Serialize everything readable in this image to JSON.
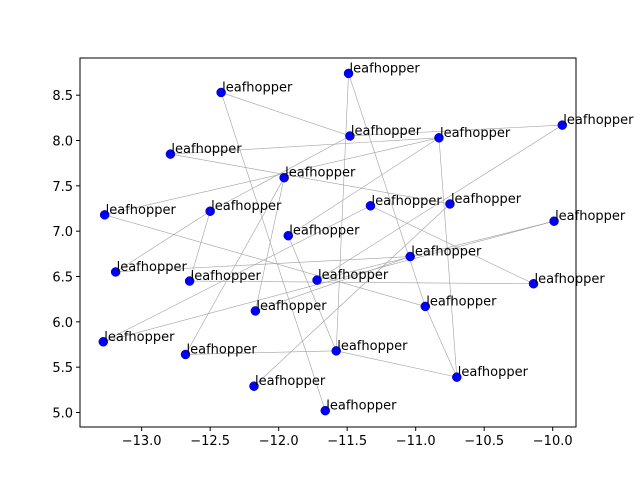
{
  "chart_data": {
    "type": "scatter",
    "title": "",
    "xlabel": "",
    "ylabel": "",
    "xlim": [
      -13.45,
      -9.83
    ],
    "ylim": [
      4.84,
      8.91
    ],
    "xticks": [
      -13.0,
      -12.5,
      -12.0,
      -11.5,
      -11.0,
      -10.5,
      -10.0
    ],
    "xtick_labels": [
      "−13.0",
      "−12.5",
      "−12.0",
      "−11.5",
      "−11.0",
      "−10.5",
      "−10.0"
    ],
    "yticks": [
      5.0,
      5.5,
      6.0,
      6.5,
      7.0,
      7.5,
      8.0,
      8.5
    ],
    "ytick_labels": [
      "5.0",
      "5.5",
      "6.0",
      "6.5",
      "7.0",
      "7.5",
      "8.0",
      "8.5"
    ],
    "grid": false,
    "marker_color": "#0000ff",
    "edge_color": "#a0a0a0",
    "points": [
      {
        "label": "leafhopper",
        "x": -11.49,
        "y": 8.74
      },
      {
        "label": "leafhopper",
        "x": -12.42,
        "y": 8.53
      },
      {
        "label": "leafhopper",
        "x": -11.48,
        "y": 8.05
      },
      {
        "label": "leafhopper",
        "x": -10.83,
        "y": 8.03
      },
      {
        "label": "leafhopper",
        "x": -9.93,
        "y": 8.17
      },
      {
        "label": "leafhopper",
        "x": -12.79,
        "y": 7.85
      },
      {
        "label": "leafhopper",
        "x": -11.96,
        "y": 7.59
      },
      {
        "label": "leafhopper",
        "x": -11.33,
        "y": 7.28
      },
      {
        "label": "leafhopper",
        "x": -10.75,
        "y": 7.3
      },
      {
        "label": "leafhopper",
        "x": -12.5,
        "y": 7.22
      },
      {
        "label": "leafhopper",
        "x": -13.27,
        "y": 7.18
      },
      {
        "label": "leafhopper",
        "x": -9.99,
        "y": 7.11
      },
      {
        "label": "leafhopper",
        "x": -11.93,
        "y": 6.95
      },
      {
        "label": "leafhopper",
        "x": -11.04,
        "y": 6.72
      },
      {
        "label": "leafhopper",
        "x": -13.19,
        "y": 6.55
      },
      {
        "label": "leafhopper",
        "x": -12.65,
        "y": 6.45
      },
      {
        "label": "leafhopper",
        "x": -11.72,
        "y": 6.46
      },
      {
        "label": "leafhopper",
        "x": -10.14,
        "y": 6.42
      },
      {
        "label": "leafhopper",
        "x": -12.17,
        "y": 6.12
      },
      {
        "label": "leafhopper",
        "x": -10.93,
        "y": 6.17
      },
      {
        "label": "leafhopper",
        "x": -13.28,
        "y": 5.78
      },
      {
        "label": "leafhopper",
        "x": -12.68,
        "y": 5.64
      },
      {
        "label": "leafhopper",
        "x": -11.58,
        "y": 5.68
      },
      {
        "label": "leafhopper",
        "x": -10.7,
        "y": 5.39
      },
      {
        "label": "leafhopper",
        "x": -12.18,
        "y": 5.29
      },
      {
        "label": "leafhopper",
        "x": -11.66,
        "y": 5.02
      }
    ],
    "edges": [
      [
        0,
        22
      ],
      [
        0,
        19
      ],
      [
        1,
        2
      ],
      [
        1,
        25
      ],
      [
        2,
        4
      ],
      [
        2,
        9
      ],
      [
        3,
        12
      ],
      [
        3,
        10
      ],
      [
        3,
        23
      ],
      [
        5,
        3
      ],
      [
        5,
        8
      ],
      [
        6,
        18
      ],
      [
        6,
        21
      ],
      [
        7,
        20
      ],
      [
        7,
        17
      ],
      [
        8,
        24
      ],
      [
        9,
        15
      ],
      [
        10,
        19
      ],
      [
        11,
        16
      ],
      [
        11,
        20
      ],
      [
        12,
        22
      ],
      [
        13,
        14
      ],
      [
        13,
        18
      ],
      [
        14,
        9
      ],
      [
        15,
        17
      ],
      [
        16,
        4
      ],
      [
        19,
        23
      ],
      [
        21,
        22
      ],
      [
        22,
        23
      ]
    ]
  }
}
